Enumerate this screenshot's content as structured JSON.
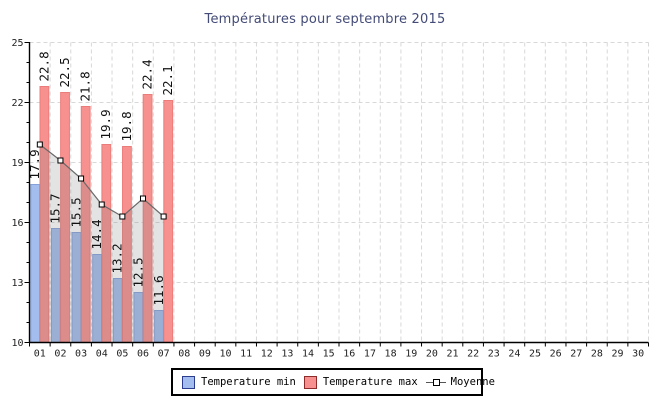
{
  "title": "Températures pour septembre 2015",
  "chart_data": {
    "type": "bar",
    "title": "Températures pour septembre 2015",
    "categories": [
      "01",
      "02",
      "03",
      "04",
      "05",
      "06",
      "07",
      "08",
      "09",
      "10",
      "11",
      "12",
      "13",
      "14",
      "15",
      "16",
      "17",
      "18",
      "19",
      "20",
      "21",
      "22",
      "23",
      "24",
      "25",
      "26",
      "27",
      "28",
      "29",
      "30"
    ],
    "series": [
      {
        "name": "Temperature min",
        "type": "bar",
        "fill": "#a3bdee",
        "border": "#84a1da",
        "values": [
          17.9,
          15.7,
          15.5,
          14.4,
          13.2,
          12.5,
          11.6
        ]
      },
      {
        "name": "Temperature max",
        "type": "bar",
        "fill": "#f7918f",
        "border": "#ec7c7a",
        "values": [
          22.8,
          22.5,
          21.8,
          19.9,
          19.8,
          22.4,
          22.1
        ]
      },
      {
        "name": "Moyenne",
        "type": "line",
        "line_color": "#6a6a6a",
        "marker": "white-square",
        "area_fill": "rgba(128,128,128,0.22)",
        "values": [
          19.9,
          19.1,
          18.2,
          16.9,
          16.3,
          17.2,
          16.3
        ]
      }
    ],
    "xlabel": "",
    "ylabel": "",
    "ylim": [
      10,
      25
    ],
    "yticks": [
      10,
      13,
      16,
      19,
      22,
      25
    ],
    "grid": "dashed",
    "bar_labels": true,
    "legend_position": "bottom-center"
  },
  "legend": {
    "items": [
      {
        "label": "Temperature min",
        "swatch_fill": "#a3bdee",
        "swatch_border": "#2c3c8e"
      },
      {
        "label": "Temperature max",
        "swatch_fill": "#f7918f",
        "swatch_border": "#8e2c2c"
      },
      {
        "label": "Moyenne",
        "icon": "line-with-square-marker"
      }
    ]
  },
  "colors": {
    "title": "#434b77",
    "axis": "#000000",
    "grid": "#d8d8d8",
    "bar_label": "#111111",
    "tick_label": "#222222",
    "background": "#ffffff"
  }
}
